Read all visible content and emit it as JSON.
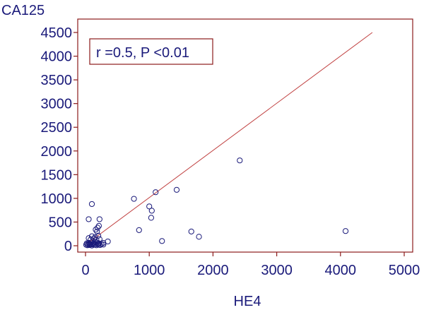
{
  "chart_data": {
    "type": "scatter",
    "xlabel": "HE4",
    "ylabel": "CA125",
    "xlim": [
      -100,
      5000
    ],
    "ylim": [
      -100,
      4600
    ],
    "xticks": [
      0,
      1000,
      2000,
      3000,
      4000,
      5000
    ],
    "yticks": [
      0,
      500,
      1000,
      1500,
      2000,
      2500,
      3000,
      3500,
      4000,
      4500
    ],
    "annotation": "r =0.5, P <0.01",
    "fit_line": {
      "x": [
        60,
        4500
      ],
      "y": [
        80,
        4500
      ]
    },
    "colors": {
      "axis": "#8b1a1a",
      "text": "#1a1a7a",
      "points": "#1a1a7a",
      "line": "#c04040"
    },
    "points": [
      {
        "x": 10,
        "y": 20
      },
      {
        "x": 20,
        "y": 50
      },
      {
        "x": 30,
        "y": 10
      },
      {
        "x": 40,
        "y": 30
      },
      {
        "x": 50,
        "y": 60
      },
      {
        "x": 60,
        "y": 15
      },
      {
        "x": 70,
        "y": 40
      },
      {
        "x": 80,
        "y": 25
      },
      {
        "x": 90,
        "y": 70
      },
      {
        "x": 100,
        "y": 5
      },
      {
        "x": 110,
        "y": 35
      },
      {
        "x": 120,
        "y": 45
      },
      {
        "x": 130,
        "y": 20
      },
      {
        "x": 140,
        "y": 55
      },
      {
        "x": 150,
        "y": 30
      },
      {
        "x": 160,
        "y": 80
      },
      {
        "x": 170,
        "y": 10
      },
      {
        "x": 180,
        "y": 65
      },
      {
        "x": 190,
        "y": 40
      },
      {
        "x": 200,
        "y": 20
      },
      {
        "x": 210,
        "y": 50
      },
      {
        "x": 230,
        "y": 15
      },
      {
        "x": 250,
        "y": 35
      },
      {
        "x": 280,
        "y": 25
      },
      {
        "x": 50,
        "y": 160
      },
      {
        "x": 80,
        "y": 130
      },
      {
        "x": 100,
        "y": 200
      },
      {
        "x": 130,
        "y": 150
      },
      {
        "x": 150,
        "y": 180
      },
      {
        "x": 170,
        "y": 120
      },
      {
        "x": 200,
        "y": 210
      },
      {
        "x": 220,
        "y": 140
      },
      {
        "x": 160,
        "y": 340
      },
      {
        "x": 190,
        "y": 380
      },
      {
        "x": 210,
        "y": 420
      },
      {
        "x": 180,
        "y": 300
      },
      {
        "x": 50,
        "y": 560
      },
      {
        "x": 220,
        "y": 560
      },
      {
        "x": 100,
        "y": 880
      },
      {
        "x": 350,
        "y": 90
      },
      {
        "x": 280,
        "y": 60
      },
      {
        "x": 760,
        "y": 990
      },
      {
        "x": 840,
        "y": 330
      },
      {
        "x": 1000,
        "y": 830
      },
      {
        "x": 1040,
        "y": 740
      },
      {
        "x": 1030,
        "y": 590
      },
      {
        "x": 1100,
        "y": 1130
      },
      {
        "x": 1200,
        "y": 100
      },
      {
        "x": 1430,
        "y": 1180
      },
      {
        "x": 1660,
        "y": 300
      },
      {
        "x": 1780,
        "y": 190
      },
      {
        "x": 2420,
        "y": 1800
      },
      {
        "x": 4080,
        "y": 310
      }
    ]
  }
}
